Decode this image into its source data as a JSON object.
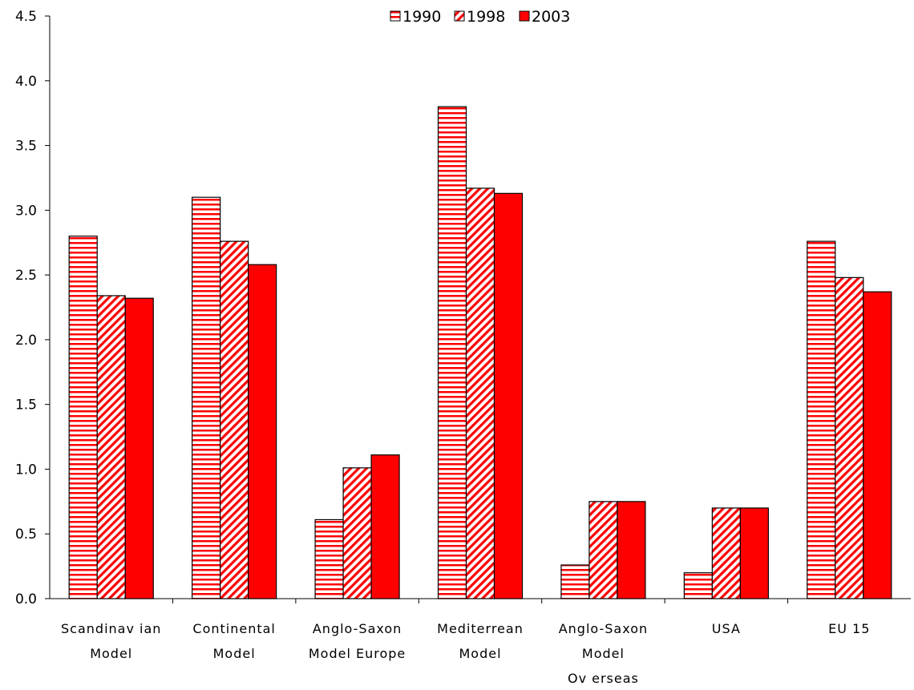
{
  "chart_data": {
    "type": "bar",
    "title": "",
    "xlabel": "",
    "ylabel": "",
    "ylim": [
      0,
      4.5
    ],
    "yticks": [
      "0.0",
      "0.5",
      "1.0",
      "1.5",
      "2.0",
      "2.5",
      "3.0",
      "3.5",
      "4.0",
      "4.5"
    ],
    "ytick_values": [
      0,
      0.5,
      1.0,
      1.5,
      2.0,
      2.5,
      3.0,
      3.5,
      4.0,
      4.5
    ],
    "grid": false,
    "legend_position": "top-center",
    "categories": [
      [
        "Scandinav ian",
        "Model"
      ],
      [
        "Continental",
        "Model"
      ],
      [
        "Anglo-Saxon",
        "Model Europe"
      ],
      [
        "Mediterrean",
        "Model"
      ],
      [
        "Anglo-Saxon",
        "Model",
        "Ov erseas"
      ],
      [
        "USA"
      ],
      [
        "EU 15"
      ]
    ],
    "series": [
      {
        "name": "1990",
        "pattern": "horizontal-stripes",
        "color": "#ff0000",
        "values": [
          2.8,
          3.1,
          0.61,
          3.8,
          0.26,
          0.2,
          2.76
        ]
      },
      {
        "name": "1998",
        "pattern": "diagonal-stripes",
        "color": "#ff0000",
        "values": [
          2.34,
          2.76,
          1.01,
          3.17,
          0.75,
          0.7,
          2.48
        ]
      },
      {
        "name": "2003",
        "pattern": "solid",
        "color": "#ff0000",
        "values": [
          2.32,
          2.58,
          1.11,
          3.13,
          0.75,
          0.7,
          2.37
        ]
      }
    ]
  }
}
